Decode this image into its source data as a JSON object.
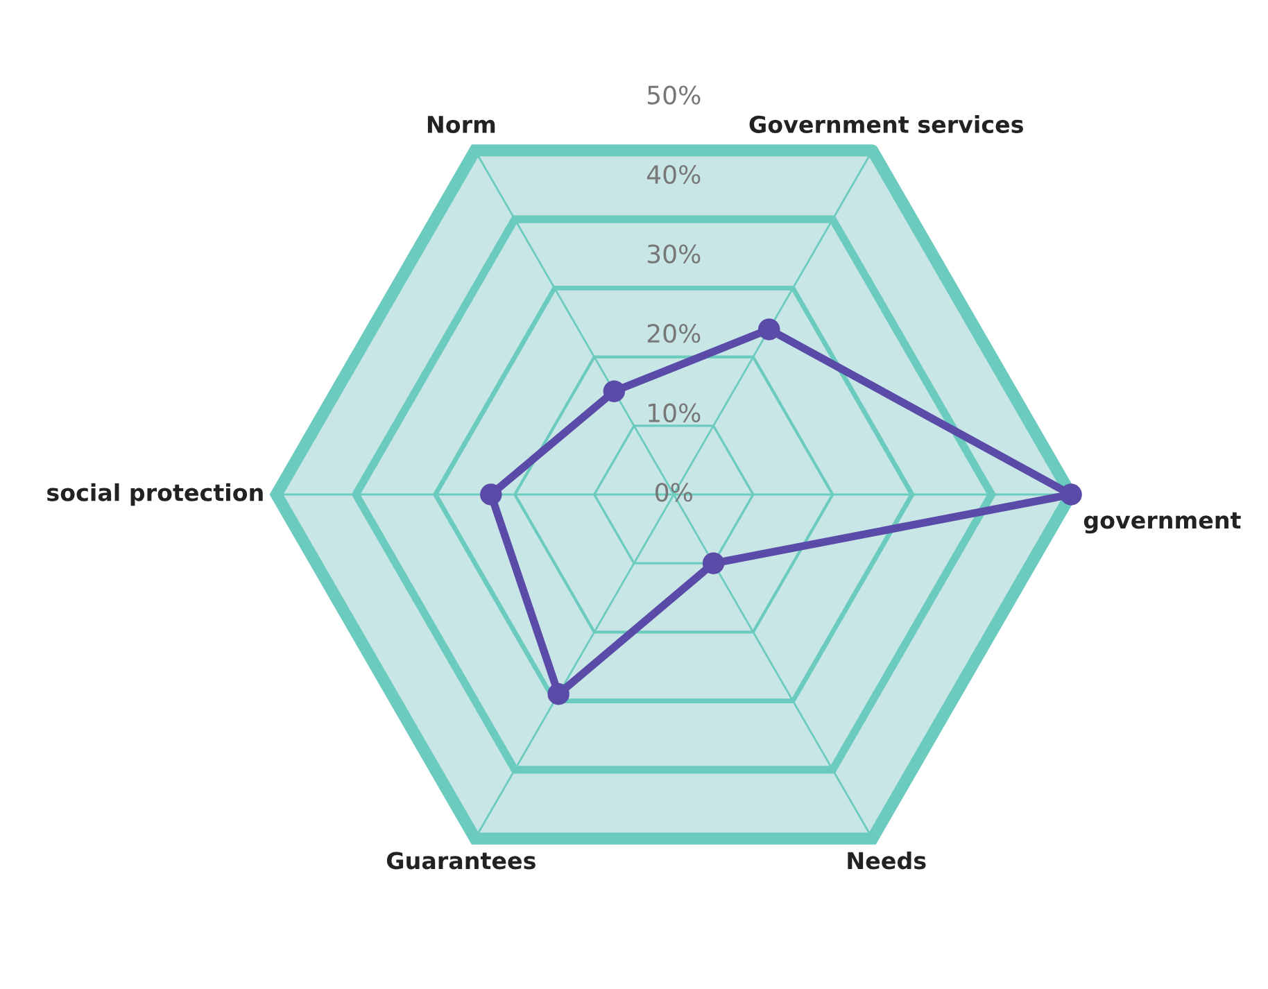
{
  "chart_data": {
    "type": "radar",
    "categories": [
      "Government services",
      "government",
      "Needs",
      "Guarantees",
      "social protection",
      "Norm"
    ],
    "series": [
      {
        "color": "#5b4ba8",
        "values": [
          24,
          50,
          10,
          29,
          23,
          15
        ]
      }
    ],
    "ylim": [
      0,
      50
    ],
    "yticks": [
      {
        "value": 0,
        "label": "0%"
      },
      {
        "value": 10,
        "label": "10%"
      },
      {
        "value": 20,
        "label": "20%"
      },
      {
        "value": 30,
        "label": "30%"
      },
      {
        "value": 40,
        "label": "40%"
      },
      {
        "value": 50,
        "label": "50%"
      }
    ],
    "grid": true,
    "marker": "circle",
    "line_style": "solid"
  }
}
